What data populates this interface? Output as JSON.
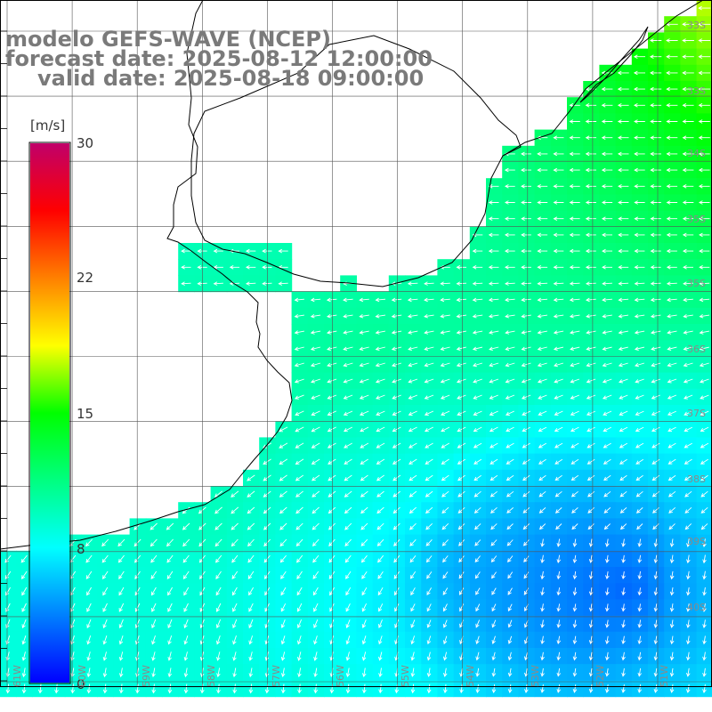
{
  "title": {
    "line1": "modelo GEFS-WAVE (NCEP)",
    "line2": "forecast date: 2025-08-12 12:00:00",
    "line3": "valid date: 2025-08-18 09:00:00"
  },
  "colorbar": {
    "units": "[m/s]",
    "ticks": [
      {
        "label": "30",
        "value": 30
      },
      {
        "label": "22",
        "value": 22
      },
      {
        "label": "15",
        "value": 15
      },
      {
        "label": "8",
        "value": 8
      },
      {
        "label": "0",
        "value": 0
      }
    ],
    "color_stops": [
      "#0000ff",
      "#0080ff",
      "#00ffff",
      "#00ff80",
      "#00ff00",
      "#ffff00",
      "#ff8000",
      "#ff0000",
      "#c0006a"
    ]
  },
  "lat_labels": [
    {
      "label": "33S"
    },
    {
      "label": "33S"
    },
    {
      "label": "34S"
    },
    {
      "label": "35S"
    },
    {
      "label": "36S"
    },
    {
      "label": "37S"
    },
    {
      "label": "38S"
    },
    {
      "label": "39S"
    },
    {
      "label": "40S"
    }
  ],
  "lon_labels": [
    {
      "label": "61W"
    },
    {
      "label": "60W"
    },
    {
      "label": "59W"
    },
    {
      "label": "58W"
    },
    {
      "label": "57W"
    },
    {
      "label": "56W"
    },
    {
      "label": "55W"
    },
    {
      "label": "54W"
    },
    {
      "label": "53W"
    },
    {
      "label": "52W"
    },
    {
      "label": "51W"
    }
  ],
  "colors": {
    "land": "#ffffff",
    "grid": "#555555",
    "coast": "#000000",
    "arrow": "#ffffff"
  }
}
